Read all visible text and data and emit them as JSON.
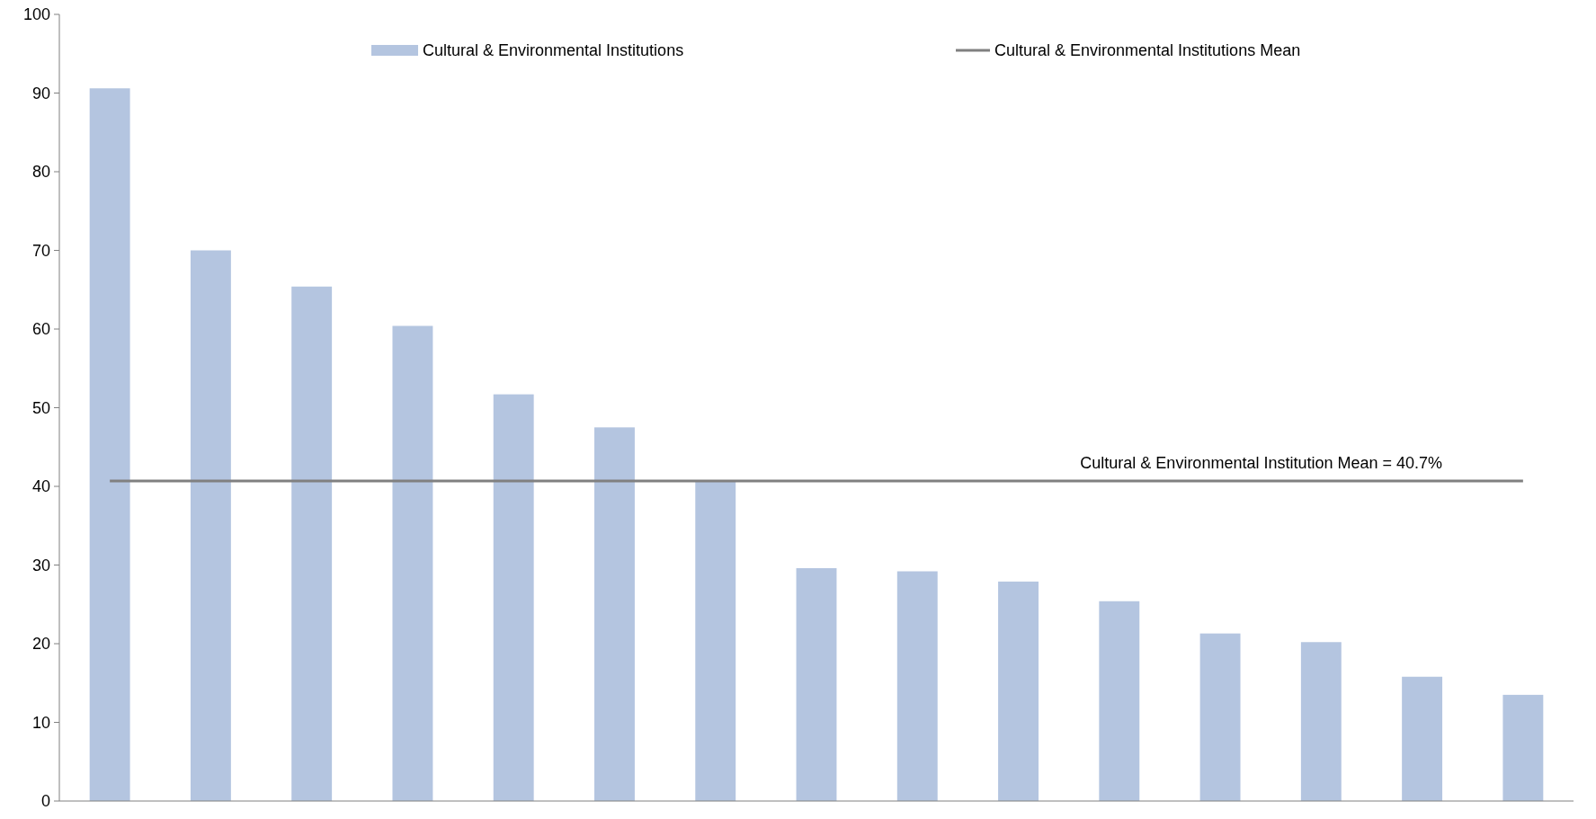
{
  "chart_data": {
    "type": "bar",
    "categories": [
      null,
      null,
      null,
      null,
      null,
      null,
      null,
      null,
      null,
      null,
      null,
      null,
      null,
      null,
      null
    ],
    "series": [
      {
        "name": "Cultural & Environmental Institutions",
        "color": "#b4c5e0",
        "values": [
          90.6,
          70.0,
          65.4,
          60.4,
          51.7,
          47.5,
          40.6,
          29.6,
          29.2,
          27.9,
          25.4,
          21.3,
          20.2,
          15.8,
          13.5
        ]
      },
      {
        "name": "Cultural & Environmental Institutions Mean",
        "type": "line",
        "color": "#808080",
        "values": [
          40.7,
          40.7,
          40.7,
          40.7,
          40.7,
          40.7,
          40.7,
          40.7,
          40.7,
          40.7,
          40.7,
          40.7,
          40.7,
          40.7,
          40.7
        ]
      }
    ],
    "annotations": [
      "Cultural & Environmental Institution Mean = 40.7%"
    ],
    "ylim": [
      0,
      100
    ],
    "yticks": [
      0,
      10,
      20,
      30,
      40,
      50,
      60,
      70,
      80,
      90,
      100
    ],
    "grid": false,
    "legend": "top",
    "line_style": "solid"
  }
}
